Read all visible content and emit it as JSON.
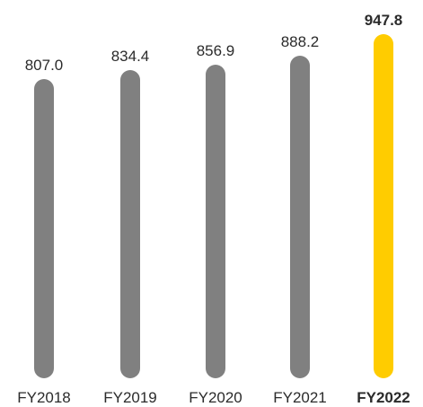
{
  "chart_data": {
    "type": "bar",
    "categories": [
      "FY2018",
      "FY2019",
      "FY2020",
      "FY2021",
      "FY2022"
    ],
    "values": [
      807.0,
      834.4,
      856.9,
      888.2,
      947.8
    ],
    "value_labels": [
      "807.0",
      "834.4",
      "856.9",
      "888.2",
      "947.8"
    ],
    "highlight_index": 4,
    "ylim": [
      0,
      947.8
    ],
    "title": "",
    "xlabel": "",
    "ylabel": "",
    "grid": false,
    "colors": {
      "bar": "#808080",
      "highlight": "#ffcc00",
      "text": "#2b2b2b"
    }
  }
}
